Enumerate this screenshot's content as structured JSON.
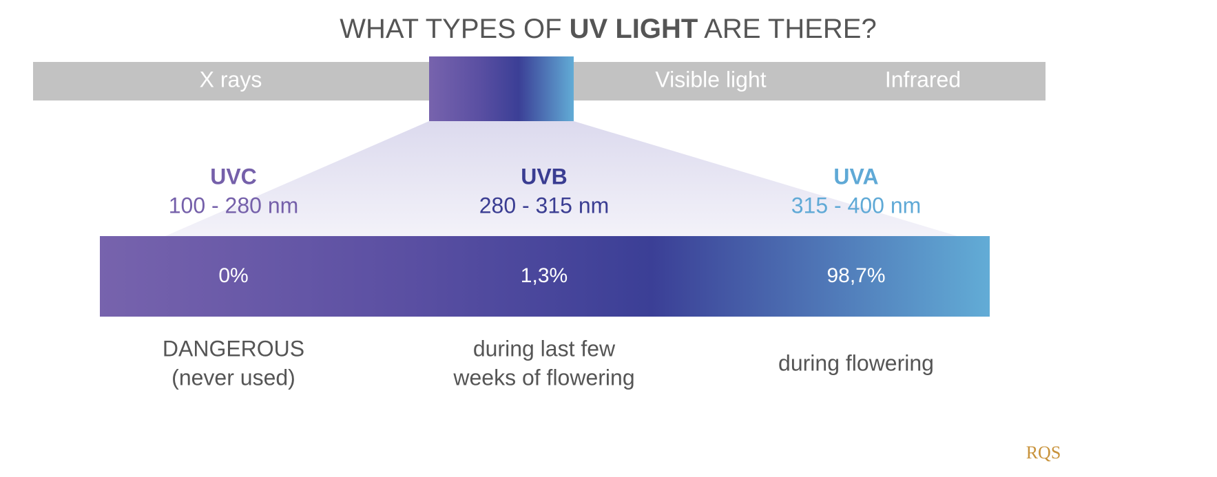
{
  "header": {
    "title_parts": [
      "WHAT TYPES OF ",
      "UV LIGHT",
      " ARE THERE?"
    ]
  },
  "spectrum": {
    "labels": [
      "X rays",
      "Visible light",
      "Infrared"
    ]
  },
  "uv_types": [
    {
      "name": "UVC",
      "range": "100 - 280 nm",
      "share": "0%",
      "use_lines": [
        "DANGEROUS",
        "(never used)"
      ]
    },
    {
      "name": "UVB",
      "range": "280 - 315 nm",
      "share": "1,3%",
      "use_lines": [
        "during last few",
        "weeks of flowering"
      ]
    },
    {
      "name": "UVA",
      "range": "315 - 400 nm",
      "share": "98,7%",
      "use_lines": [
        "during flowering"
      ]
    }
  ],
  "logo": {
    "text": "RQS"
  }
}
